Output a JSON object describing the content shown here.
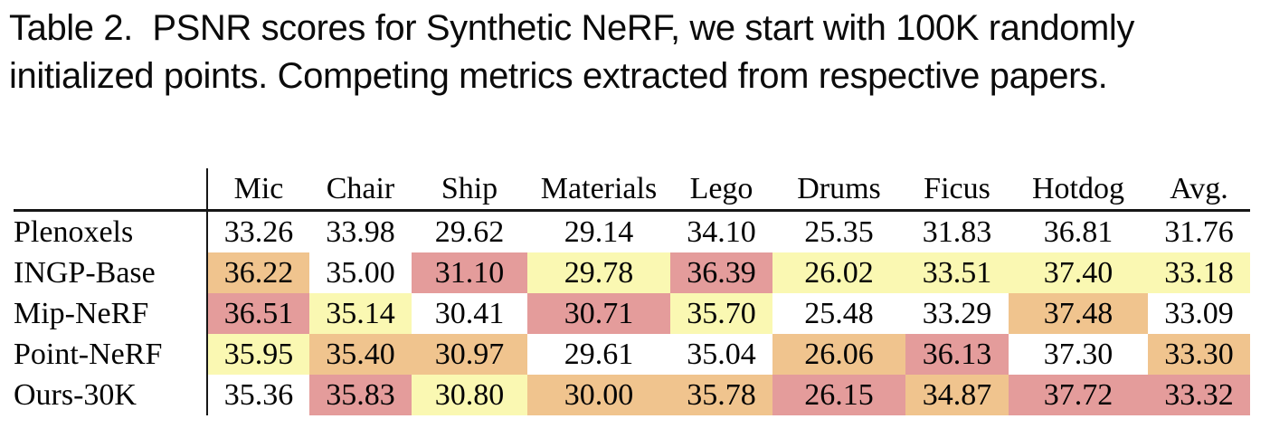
{
  "caption": {
    "line1": "Table 2.  PSNR scores for Synthetic NeRF, we start with 100K randomly",
    "line2": "initialized points. Competing metrics extracted from respective papers."
  },
  "table": {
    "columns": [
      "",
      "Mic",
      "Chair",
      "Ship",
      "Materials",
      "Lego",
      "Drums",
      "Ficus",
      "Hotdog",
      "Avg."
    ],
    "rows": [
      {
        "label": "Plenoxels",
        "values": [
          "33.26",
          "33.98",
          "29.62",
          "29.14",
          "34.10",
          "25.35",
          "31.83",
          "36.81",
          "31.76"
        ],
        "highlights": [
          "none",
          "none",
          "none",
          "none",
          "none",
          "none",
          "none",
          "none",
          "none"
        ]
      },
      {
        "label": "INGP-Base",
        "values": [
          "36.22",
          "35.00",
          "31.10",
          "29.78",
          "36.39",
          "26.02",
          "33.51",
          "37.40",
          "33.18"
        ],
        "highlights": [
          "second",
          "none",
          "best",
          "third",
          "best",
          "third",
          "third",
          "third",
          "third"
        ]
      },
      {
        "label": "Mip-NeRF",
        "values": [
          "36.51",
          "35.14",
          "30.41",
          "30.71",
          "35.70",
          "25.48",
          "33.29",
          "37.48",
          "33.09"
        ],
        "highlights": [
          "best",
          "third",
          "none",
          "best",
          "third",
          "none",
          "none",
          "second",
          "none"
        ]
      },
      {
        "label": "Point-NeRF",
        "values": [
          "35.95",
          "35.40",
          "30.97",
          "29.61",
          "35.04",
          "26.06",
          "36.13",
          "37.30",
          "33.30"
        ],
        "highlights": [
          "third",
          "second",
          "second",
          "none",
          "none",
          "second",
          "best",
          "none",
          "second"
        ]
      },
      {
        "label": "Ours-30K",
        "values": [
          "35.36",
          "35.83",
          "30.80",
          "30.00",
          "35.78",
          "26.15",
          "34.87",
          "37.72",
          "33.32"
        ],
        "highlights": [
          "none",
          "best",
          "third",
          "second",
          "second",
          "best",
          "second",
          "best",
          "best"
        ]
      }
    ]
  },
  "colors": {
    "best": "#E49C9B",
    "second": "#F0C48E",
    "third": "#FAF8B2"
  }
}
